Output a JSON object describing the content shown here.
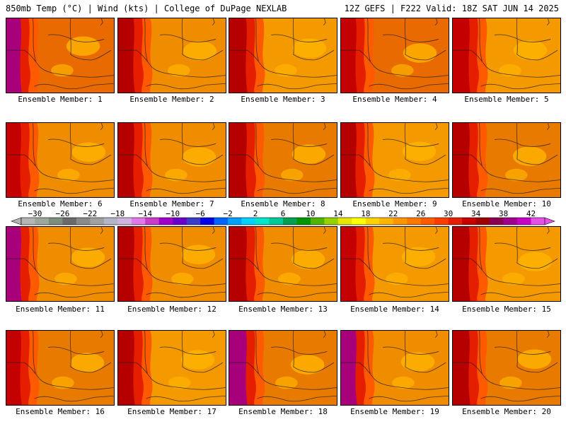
{
  "header": {
    "left": "850mb Temp (°C) | Wind (kts) | College of DuPage NEXLAB",
    "right": "12Z GEFS | F222 Valid: 18Z SAT JUN 14 2025"
  },
  "members": [
    {
      "label": "Ensemble Member: 1",
      "west_color": "#a8007a",
      "warm_color": "#e86a00"
    },
    {
      "label": "Ensemble Member: 2",
      "west_color": "#b60000",
      "warm_color": "#f08c00"
    },
    {
      "label": "Ensemble Member: 3",
      "west_color": "#b60000",
      "warm_color": "#f49a00"
    },
    {
      "label": "Ensemble Member: 4",
      "west_color": "#c40000",
      "warm_color": "#e86a00"
    },
    {
      "label": "Ensemble Member: 5",
      "west_color": "#c40000",
      "warm_color": "#f49a00"
    },
    {
      "label": "Ensemble Member: 6",
      "west_color": "#c40000",
      "warm_color": "#f08c00"
    },
    {
      "label": "Ensemble Member: 7",
      "west_color": "#b60000",
      "warm_color": "#f08c00"
    },
    {
      "label": "Ensemble Member: 8",
      "west_color": "#b60000",
      "warm_color": "#e87a00"
    },
    {
      "label": "Ensemble Member: 9",
      "west_color": "#b60000",
      "warm_color": "#f49a00"
    },
    {
      "label": "Ensemble Member: 10",
      "west_color": "#b60000",
      "warm_color": "#e87a00"
    },
    {
      "label": "Ensemble Member: 11",
      "west_color": "#a8007a",
      "warm_color": "#f08c00"
    },
    {
      "label": "Ensemble Member: 12",
      "west_color": "#b60000",
      "warm_color": "#f08c00"
    },
    {
      "label": "Ensemble Member: 13",
      "west_color": "#b60000",
      "warm_color": "#f08c00"
    },
    {
      "label": "Ensemble Member: 14",
      "west_color": "#c40000",
      "warm_color": "#f49a00"
    },
    {
      "label": "Ensemble Member: 15",
      "west_color": "#b60000",
      "warm_color": "#f49a00"
    },
    {
      "label": "Ensemble Member: 16",
      "west_color": "#c40000",
      "warm_color": "#e87a00"
    },
    {
      "label": "Ensemble Member: 17",
      "west_color": "#b60000",
      "warm_color": "#f49a00"
    },
    {
      "label": "Ensemble Member: 18",
      "west_color": "#a8007a",
      "warm_color": "#e87a00"
    },
    {
      "label": "Ensemble Member: 19",
      "west_color": "#a8007a",
      "warm_color": "#f08c00"
    },
    {
      "label": "Ensemble Member: 20",
      "west_color": "#b60000",
      "warm_color": "#e87a00"
    }
  ],
  "colorbar": {
    "min": -32,
    "max": 44,
    "step": 2,
    "labels": [
      "−30",
      "−26",
      "−22",
      "−18",
      "−14",
      "−10",
      "−6",
      "−2",
      "2",
      "6",
      "10",
      "14",
      "18",
      "22",
      "26",
      "30",
      "34",
      "38",
      "42"
    ],
    "label_values": [
      -30,
      -26,
      -22,
      -18,
      -14,
      -10,
      -6,
      -2,
      2,
      6,
      10,
      14,
      18,
      22,
      26,
      30,
      34,
      38,
      42
    ],
    "colors": [
      "#b4b4b4",
      "#9ca89c",
      "#7e8e7e",
      "#6a6a6a",
      "#8a8a8a",
      "#a0a0a0",
      "#b4b4c8",
      "#d0b4e0",
      "#e078e8",
      "#c83cc8",
      "#a000c8",
      "#6a00c8",
      "#3c3cc8",
      "#0000e6",
      "#0064ff",
      "#00a0ff",
      "#00d2ff",
      "#00e6c8",
      "#00c896",
      "#00a050",
      "#009600",
      "#50b400",
      "#96d200",
      "#e6e600",
      "#ffff00",
      "#ffd200",
      "#ffb400",
      "#ff9600",
      "#ff7800",
      "#ff5a00",
      "#ff3c00",
      "#e61e00",
      "#c80000",
      "#a00000",
      "#8c0050",
      "#a0008c",
      "#c800c8",
      "#e650e6"
    ]
  }
}
